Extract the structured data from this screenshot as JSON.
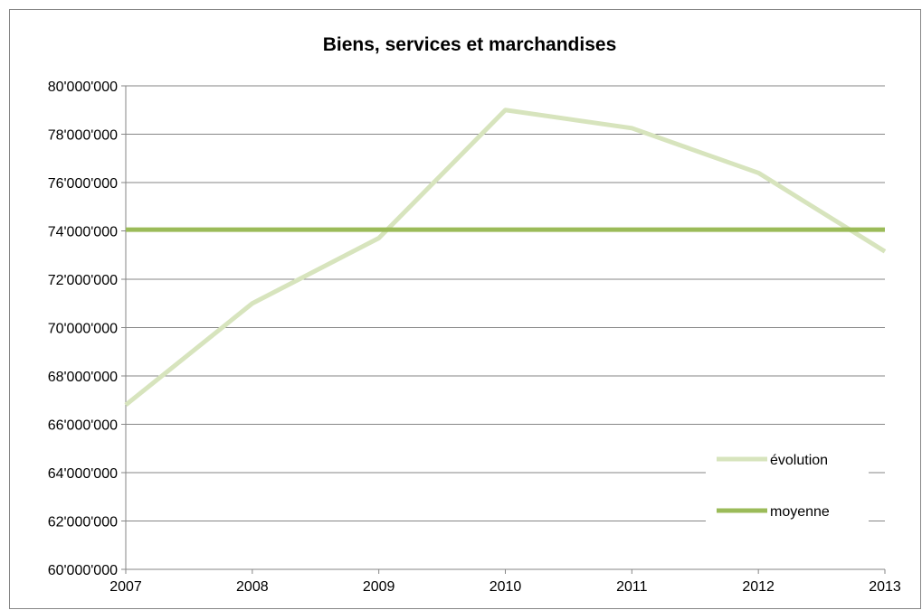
{
  "chart_data": {
    "type": "line",
    "title": "Biens, services et marchandises",
    "categories": [
      "2007",
      "2008",
      "2009",
      "2010",
      "2011",
      "2012",
      "2013"
    ],
    "y_tick_labels": [
      "60'000'000",
      "62'000'000",
      "64'000'000",
      "66'000'000",
      "68'000'000",
      "70'000'000",
      "72'000'000",
      "74'000'000",
      "76'000'000",
      "78'000'000",
      "80'000'000"
    ],
    "ylim": [
      60000000,
      80000000
    ],
    "ytick_step": 2000000,
    "grid": "horizontal",
    "legend_position": "bottom-right",
    "series": [
      {
        "name": "évolution",
        "color": "#d7e4bd",
        "values": [
          66800000,
          71000000,
          73700000,
          79000000,
          78250000,
          76400000,
          73150000
        ]
      },
      {
        "name": "moyenne",
        "color": "#9bbb59",
        "values": [
          74050000,
          74050000,
          74050000,
          74050000,
          74050000,
          74050000,
          74050000
        ]
      }
    ]
  }
}
